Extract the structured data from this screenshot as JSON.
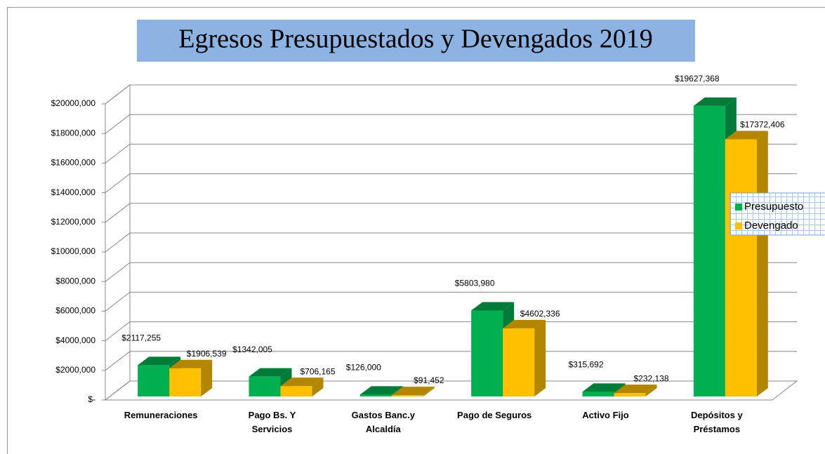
{
  "chart_data": {
    "type": "bar3d",
    "title": "Egresos Presupuestados y Devengados 2019",
    "categories": [
      "Remuneraciones",
      "Pago Bs. Y Servicios",
      "Gastos Banc.y Alcaldía",
      "Pago de Seguros",
      "Activo Fijo",
      "Depósitos y Préstamos"
    ],
    "series": [
      {
        "name": "Presupuesto",
        "color": "#00b050",
        "values": [
          2117255,
          1342005,
          126000,
          5803980,
          315692,
          19627368
        ],
        "value_labels": [
          "$2117,255",
          "$1342,005",
          "$126,000",
          "$5803,980",
          "$315,692",
          "$19627,368"
        ]
      },
      {
        "name": "Devengado",
        "color": "#ffc000",
        "values": [
          1906539,
          706165,
          91452,
          4602336,
          232138,
          17372406
        ],
        "value_labels": [
          "$1906,539",
          "$706,165",
          "$91,452",
          "$4602,336",
          "$232,138",
          "$17372,406"
        ]
      }
    ],
    "ylim": [
      0,
      20000000
    ],
    "yticks": [
      {
        "value": 0,
        "label": "$-"
      },
      {
        "value": 2000000,
        "label": "$2000,000"
      },
      {
        "value": 4000000,
        "label": "$4000,000"
      },
      {
        "value": 6000000,
        "label": "$6000,000"
      },
      {
        "value": 8000000,
        "label": "$8000,000"
      },
      {
        "value": 10000000,
        "label": "$10000,000"
      },
      {
        "value": 12000000,
        "label": "$12000,000"
      },
      {
        "value": 14000000,
        "label": "$14000,000"
      },
      {
        "value": 16000000,
        "label": "$16000,000"
      },
      {
        "value": 18000000,
        "label": "$18000,000"
      },
      {
        "value": 20000000,
        "label": "$20000,000"
      }
    ],
    "grid": true,
    "legend": "right"
  }
}
